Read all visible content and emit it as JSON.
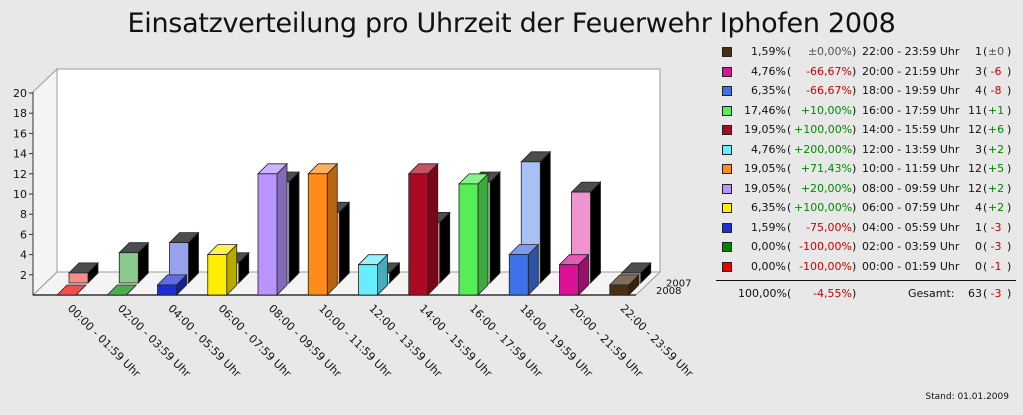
{
  "title": "Einsatzverteilung pro Uhrzeit der Feuerwehr Iphofen 2008",
  "stand": "Stand: 01.01.2009",
  "chart_data": {
    "type": "bar",
    "title": "Einsatzverteilung pro Uhrzeit der Feuerwehr Iphofen 2008",
    "categories": [
      "00:00 - 01:59 Uhr",
      "02:00 - 03:59 Uhr",
      "04:00 - 05:59 Uhr",
      "06:00 - 07:59 Uhr",
      "08:00 - 09:59 Uhr",
      "10:00 - 11:59 Uhr",
      "12:00 - 13:59 Uhr",
      "14:00 - 15:59 Uhr",
      "16:00 - 17:59 Uhr",
      "18:00 - 19:59 Uhr",
      "20:00 - 21:59 Uhr",
      "22:00 - 23:59 Uhr"
    ],
    "series": [
      {
        "name": "2008",
        "values": [
          0,
          0,
          1,
          4,
          12,
          12,
          3,
          12,
          11,
          4,
          3,
          1
        ]
      },
      {
        "name": "2007",
        "values": [
          1,
          3,
          4,
          2,
          10,
          7,
          1,
          6,
          10,
          12,
          9,
          1
        ]
      }
    ],
    "colors": [
      "#ee0000",
      "#008800",
      "#1a2fd8",
      "#ffee00",
      "#b894ff",
      "#ff8c1a",
      "#66eeff",
      "#aa0a22",
      "#55ee55",
      "#3f72e8",
      "#dd1199",
      "#4a3010"
    ],
    "yticks": [
      "2",
      "4",
      "6",
      "8",
      "10",
      "12",
      "14",
      "16",
      "18",
      "20"
    ],
    "ylim": [
      0,
      20
    ],
    "grid": false,
    "legend_position": "right"
  },
  "legend": {
    "rows": [
      {
        "pct": "1,59%",
        "change": "±0,00%",
        "range": "22:00 - 23:59 Uhr",
        "count": "1",
        "diff": "±0",
        "sign": "zero"
      },
      {
        "pct": "4,76%",
        "change": "-66,67%",
        "range": "20:00 - 21:59 Uhr",
        "count": "3",
        "diff": "-6",
        "sign": "neg"
      },
      {
        "pct": "6,35%",
        "change": "-66,67%",
        "range": "18:00 - 19:59 Uhr",
        "count": "4",
        "diff": "-8",
        "sign": "neg"
      },
      {
        "pct": "17,46%",
        "change": "+10,00%",
        "range": "16:00 - 17:59 Uhr",
        "count": "11",
        "diff": "+1",
        "sign": "pos"
      },
      {
        "pct": "19,05%",
        "change": "+100,00%",
        "range": "14:00 - 15:59 Uhr",
        "count": "12",
        "diff": "+6",
        "sign": "pos"
      },
      {
        "pct": "4,76%",
        "change": "+200,00%",
        "range": "12:00 - 13:59 Uhr",
        "count": "3",
        "diff": "+2",
        "sign": "pos"
      },
      {
        "pct": "19,05%",
        "change": "+71,43%",
        "range": "10:00 - 11:59 Uhr",
        "count": "12",
        "diff": "+5",
        "sign": "pos"
      },
      {
        "pct": "19,05%",
        "change": "+20,00%",
        "range": "08:00 - 09:59 Uhr",
        "count": "12",
        "diff": "+2",
        "sign": "pos"
      },
      {
        "pct": "6,35%",
        "change": "+100,00%",
        "range": "06:00 - 07:59 Uhr",
        "count": "4",
        "diff": "+2",
        "sign": "pos"
      },
      {
        "pct": "1,59%",
        "change": "-75,00%",
        "range": "04:00 - 05:59 Uhr",
        "count": "1",
        "diff": "-3",
        "sign": "neg"
      },
      {
        "pct": "0,00%",
        "change": "-100,00%",
        "range": "02:00 - 03:59 Uhr",
        "count": "0",
        "diff": "-3",
        "sign": "neg"
      },
      {
        "pct": "0,00%",
        "change": "-100,00%",
        "range": "00:00 - 01:59 Uhr",
        "count": "0",
        "diff": "-1",
        "sign": "neg"
      }
    ],
    "swatch_colors": [
      "#4a3010",
      "#dd1199",
      "#3f72e8",
      "#55ee55",
      "#aa0a22",
      "#66eeff",
      "#ff8c1a",
      "#b894ff",
      "#ffee00",
      "#1a2fd8",
      "#008800",
      "#ee0000"
    ],
    "total": {
      "pct": "100,00%",
      "change": "-4,55%",
      "label": "Gesamt:",
      "count": "63",
      "diff": "-3",
      "sign": "neg"
    }
  }
}
